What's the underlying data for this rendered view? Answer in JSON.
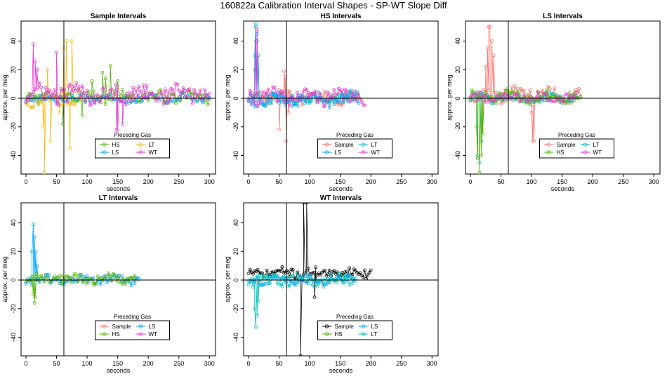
{
  "figure_title": "160822a   Calibration Interval Shapes - SP-WT Slope Diff",
  "colors": {
    "Sample": "#f8766d",
    "HS": "#53b400",
    "LS": "#00a5ff",
    "LT": "#00c0b8",
    "WT": "#e53bcb",
    "Orange": "#f6b90c",
    "Black": "#000000"
  },
  "chart_data": [
    {
      "type": "scatter",
      "title": "Sample Intervals",
      "xlabel": "seconds",
      "ylabel": "approx. per meg",
      "xlim": [
        -8,
        310
      ],
      "ylim": [
        -53,
        54
      ],
      "xticks": [
        0,
        50,
        100,
        150,
        200,
        250,
        300
      ],
      "yticks": [
        -40,
        -20,
        0,
        20,
        40
      ],
      "vline": 62,
      "legend": {
        "title": "Preceding Gas",
        "entries": [
          "HS",
          "LT",
          "LS",
          "WT"
        ],
        "location": "bottom-center"
      },
      "series": [
        {
          "name": "HS",
          "color_key": "HS",
          "x_start": 0,
          "x_end": 300,
          "step": 2.5,
          "base": 1,
          "noise": 4,
          "extra_x": [
            60,
            92,
            108,
            125,
            130,
            138,
            150
          ],
          "extra_y": [
            -18,
            -12,
            12,
            18,
            14,
            23,
            12
          ]
        },
        {
          "name": "LT",
          "color_key": "Orange",
          "x_start": 0,
          "x_end": 90,
          "step": 2.5,
          "base": 0,
          "noise": 5,
          "extra_x": [
            28,
            30,
            35,
            40,
            55,
            62,
            66,
            72,
            75
          ],
          "extra_y": [
            -20,
            -52,
            20,
            -30,
            -10,
            35,
            40,
            -35,
            40
          ]
        },
        {
          "name": "LS",
          "color_key": "LS",
          "x_start": 0,
          "x_end": 300,
          "step": 4,
          "base": 0,
          "noise": 3,
          "extra_x": [],
          "extra_y": []
        },
        {
          "name": "WT",
          "color_key": "WT",
          "x_start": 0,
          "x_end": 300,
          "step": 2.5,
          "base": 3,
          "noise": 6,
          "extra_x": [
            12,
            15,
            18,
            50,
            148,
            150,
            158
          ],
          "extra_y": [
            38,
            26,
            20,
            32,
            -22,
            -23,
            -18
          ]
        }
      ]
    },
    {
      "type": "scatter",
      "title": "HS Intervals",
      "xlabel": "seconds",
      "ylabel": "approx. per meg",
      "xlim": [
        -8,
        310
      ],
      "ylim": [
        -53,
        54
      ],
      "xticks": [
        0,
        50,
        100,
        150,
        200,
        250,
        300
      ],
      "yticks": [
        -40,
        -20,
        0,
        20,
        40
      ],
      "vline": 62,
      "legend": {
        "title": "Preceding Gas",
        "entries": [
          "Sample",
          "LT",
          "LS",
          "WT"
        ],
        "location": "bottom-center"
      },
      "series": [
        {
          "name": "Sample",
          "color_key": "Sample",
          "x_start": 0,
          "x_end": 180,
          "step": 2.5,
          "base": 0,
          "noise": 4,
          "extra_x": [
            50,
            55,
            58,
            60,
            62,
            65
          ],
          "extra_y": [
            -22,
            5,
            19,
            15,
            -30,
            -10
          ]
        },
        {
          "name": "LT",
          "color_key": "LT",
          "x_start": 0,
          "x_end": 180,
          "step": 2.5,
          "base": 0,
          "noise": 4,
          "extra_x": [
            10,
            12,
            14
          ],
          "extra_y": [
            30,
            52,
            40
          ]
        },
        {
          "name": "LS",
          "color_key": "LS",
          "x_start": 0,
          "x_end": 180,
          "step": 2.5,
          "base": -1,
          "noise": 4,
          "extra_x": [
            10,
            12,
            14,
            16
          ],
          "extra_y": [
            20,
            50,
            45,
            30
          ]
        },
        {
          "name": "WT",
          "color_key": "WT",
          "x_start": 0,
          "x_end": 190,
          "step": 2.5,
          "base": 1,
          "noise": 5,
          "extra_x": [
            12,
            14
          ],
          "extra_y": [
            40,
            48
          ]
        }
      ]
    },
    {
      "type": "scatter",
      "title": "LS Intervals",
      "xlabel": "seconds",
      "ylabel": "approx. per meg",
      "xlim": [
        -8,
        310
      ],
      "ylim": [
        -53,
        54
      ],
      "xticks": [
        0,
        50,
        100,
        150,
        200,
        250,
        300
      ],
      "yticks": [
        -40,
        -20,
        0,
        20,
        40
      ],
      "vline": 62,
      "legend": {
        "title": "Preceding Gas",
        "entries": [
          "Sample",
          "LT",
          "HS",
          "WT"
        ],
        "location": "bottom-center"
      },
      "series": [
        {
          "name": "Sample",
          "color_key": "Sample",
          "x_start": 0,
          "x_end": 180,
          "step": 2.5,
          "base": 2,
          "noise": 5,
          "extra_x": [
            20,
            25,
            28,
            30,
            32,
            35,
            38,
            100,
            102,
            104
          ],
          "extra_y": [
            -22,
            22,
            35,
            50,
            50,
            40,
            30,
            -10,
            -30,
            -30
          ]
        },
        {
          "name": "LT",
          "color_key": "LT",
          "x_start": 0,
          "x_end": 175,
          "step": 2.5,
          "base": 0,
          "noise": 3,
          "extra_x": [
            12,
            15,
            18
          ],
          "extra_y": [
            -40,
            -45,
            -30
          ]
        },
        {
          "name": "HS",
          "color_key": "HS",
          "x_start": 0,
          "x_end": 180,
          "step": 2.5,
          "base": 1,
          "noise": 4,
          "extra_x": [
            10,
            12,
            15,
            18,
            20
          ],
          "extra_y": [
            -20,
            -42,
            -52,
            -40,
            -25
          ]
        },
        {
          "name": "WT",
          "color_key": "WT",
          "x_start": 0,
          "x_end": 175,
          "step": 3,
          "base": 1,
          "noise": 3,
          "extra_x": [],
          "extra_y": []
        }
      ]
    },
    {
      "type": "scatter",
      "title": "LT Intervals",
      "xlabel": "seconds",
      "ylabel": "approx. per meg",
      "xlim": [
        -8,
        310
      ],
      "ylim": [
        -53,
        54
      ],
      "xticks": [
        0,
        50,
        100,
        150,
        200,
        250,
        300
      ],
      "yticks": [
        -40,
        -20,
        0,
        20,
        40
      ],
      "vline": 62,
      "legend": {
        "title": "Preceding Gas",
        "entries": [
          "Sample",
          "LS",
          "HS",
          "WT"
        ],
        "location": "bottom-center"
      },
      "series": [
        {
          "name": "Sample",
          "color_key": "Sample",
          "x_start": 0,
          "x_end": 0,
          "step": 5,
          "base": 0,
          "noise": 0,
          "extra_x": [],
          "extra_y": []
        },
        {
          "name": "LS",
          "color_key": "LS",
          "x_start": 0,
          "x_end": 185,
          "step": 2.5,
          "base": 0,
          "noise": 3,
          "extra_x": [
            10,
            12,
            14,
            16,
            18
          ],
          "extra_y": [
            20,
            39,
            30,
            20,
            10
          ]
        },
        {
          "name": "HS",
          "color_key": "HS",
          "x_start": 0,
          "x_end": 180,
          "step": 2.5,
          "base": 1,
          "noise": 3,
          "extra_x": [
            12,
            14,
            15
          ],
          "extra_y": [
            -10,
            -16,
            -12
          ]
        },
        {
          "name": "WT",
          "color_key": "WT",
          "x_start": 0,
          "x_end": 0,
          "step": 5,
          "base": 0,
          "noise": 0,
          "extra_x": [],
          "extra_y": []
        }
      ]
    },
    {
      "type": "scatter",
      "title": "WT Intervals",
      "xlabel": "seconds",
      "ylabel": "approx. per meg",
      "xlim": [
        -8,
        310
      ],
      "ylim": [
        -53,
        54
      ],
      "xticks": [
        0,
        50,
        100,
        150,
        200,
        250,
        300
      ],
      "yticks": [
        -40,
        -20,
        0,
        20,
        40
      ],
      "vline": 62,
      "legend": {
        "title": "Preceding Gas",
        "entries": [
          "Sample",
          "LS",
          "HS",
          "LT"
        ],
        "location": "bottom-center"
      },
      "series": [
        {
          "name": "Sample",
          "color_key": "Black",
          "x_start": 0,
          "x_end": 200,
          "step": 2.5,
          "base": 5,
          "noise": 3,
          "extra_x": [
            85,
            88,
            90,
            95,
            108,
            110
          ],
          "extra_y": [
            -53,
            0,
            54,
            54,
            -12,
            0
          ]
        },
        {
          "name": "LS",
          "color_key": "LS",
          "x_start": 0,
          "x_end": 175,
          "step": 2.5,
          "base": 0,
          "noise": 3,
          "extra_x": [],
          "extra_y": []
        },
        {
          "name": "HS",
          "color_key": "HS",
          "x_start": 0,
          "x_end": 0,
          "step": 5,
          "base": 0,
          "noise": 0,
          "extra_x": [],
          "extra_y": []
        },
        {
          "name": "LT",
          "color_key": "LT",
          "x_start": 0,
          "x_end": 175,
          "step": 2.5,
          "base": 0,
          "noise": 4,
          "extra_x": [
            10,
            12,
            14,
            16
          ],
          "extra_y": [
            -20,
            -33,
            -25,
            -15
          ]
        }
      ]
    }
  ]
}
